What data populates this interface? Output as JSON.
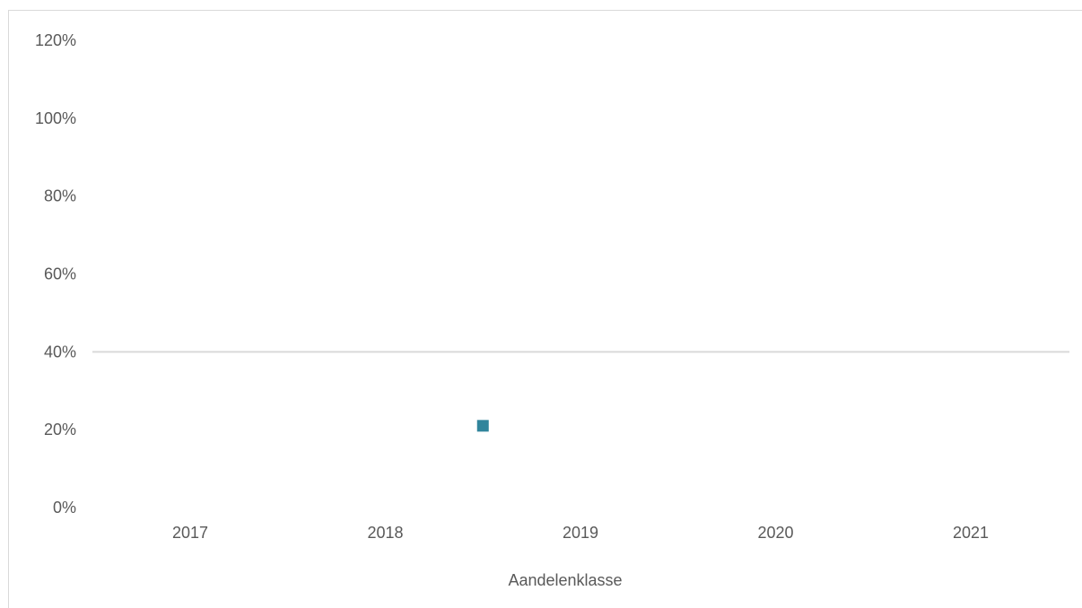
{
  "chart_data": {
    "type": "scatter",
    "title": "",
    "xlabel": "Aandelenklasse",
    "ylabel": "",
    "categories": [
      "2017",
      "2018",
      "2019",
      "2020",
      "2021"
    ],
    "y_ticks": [
      "0%",
      "20%",
      "40%",
      "60%",
      "80%",
      "100%",
      "120%"
    ],
    "ylim": [
      0,
      1.2
    ],
    "reference_line": {
      "value": 0.4,
      "color": "#d9d9d9"
    },
    "series": [
      {
        "marker": "square",
        "color": "#31859c",
        "points": [
          {
            "x": 2018.5,
            "y": 0.21
          }
        ]
      }
    ],
    "grid": false,
    "legend": "none"
  }
}
